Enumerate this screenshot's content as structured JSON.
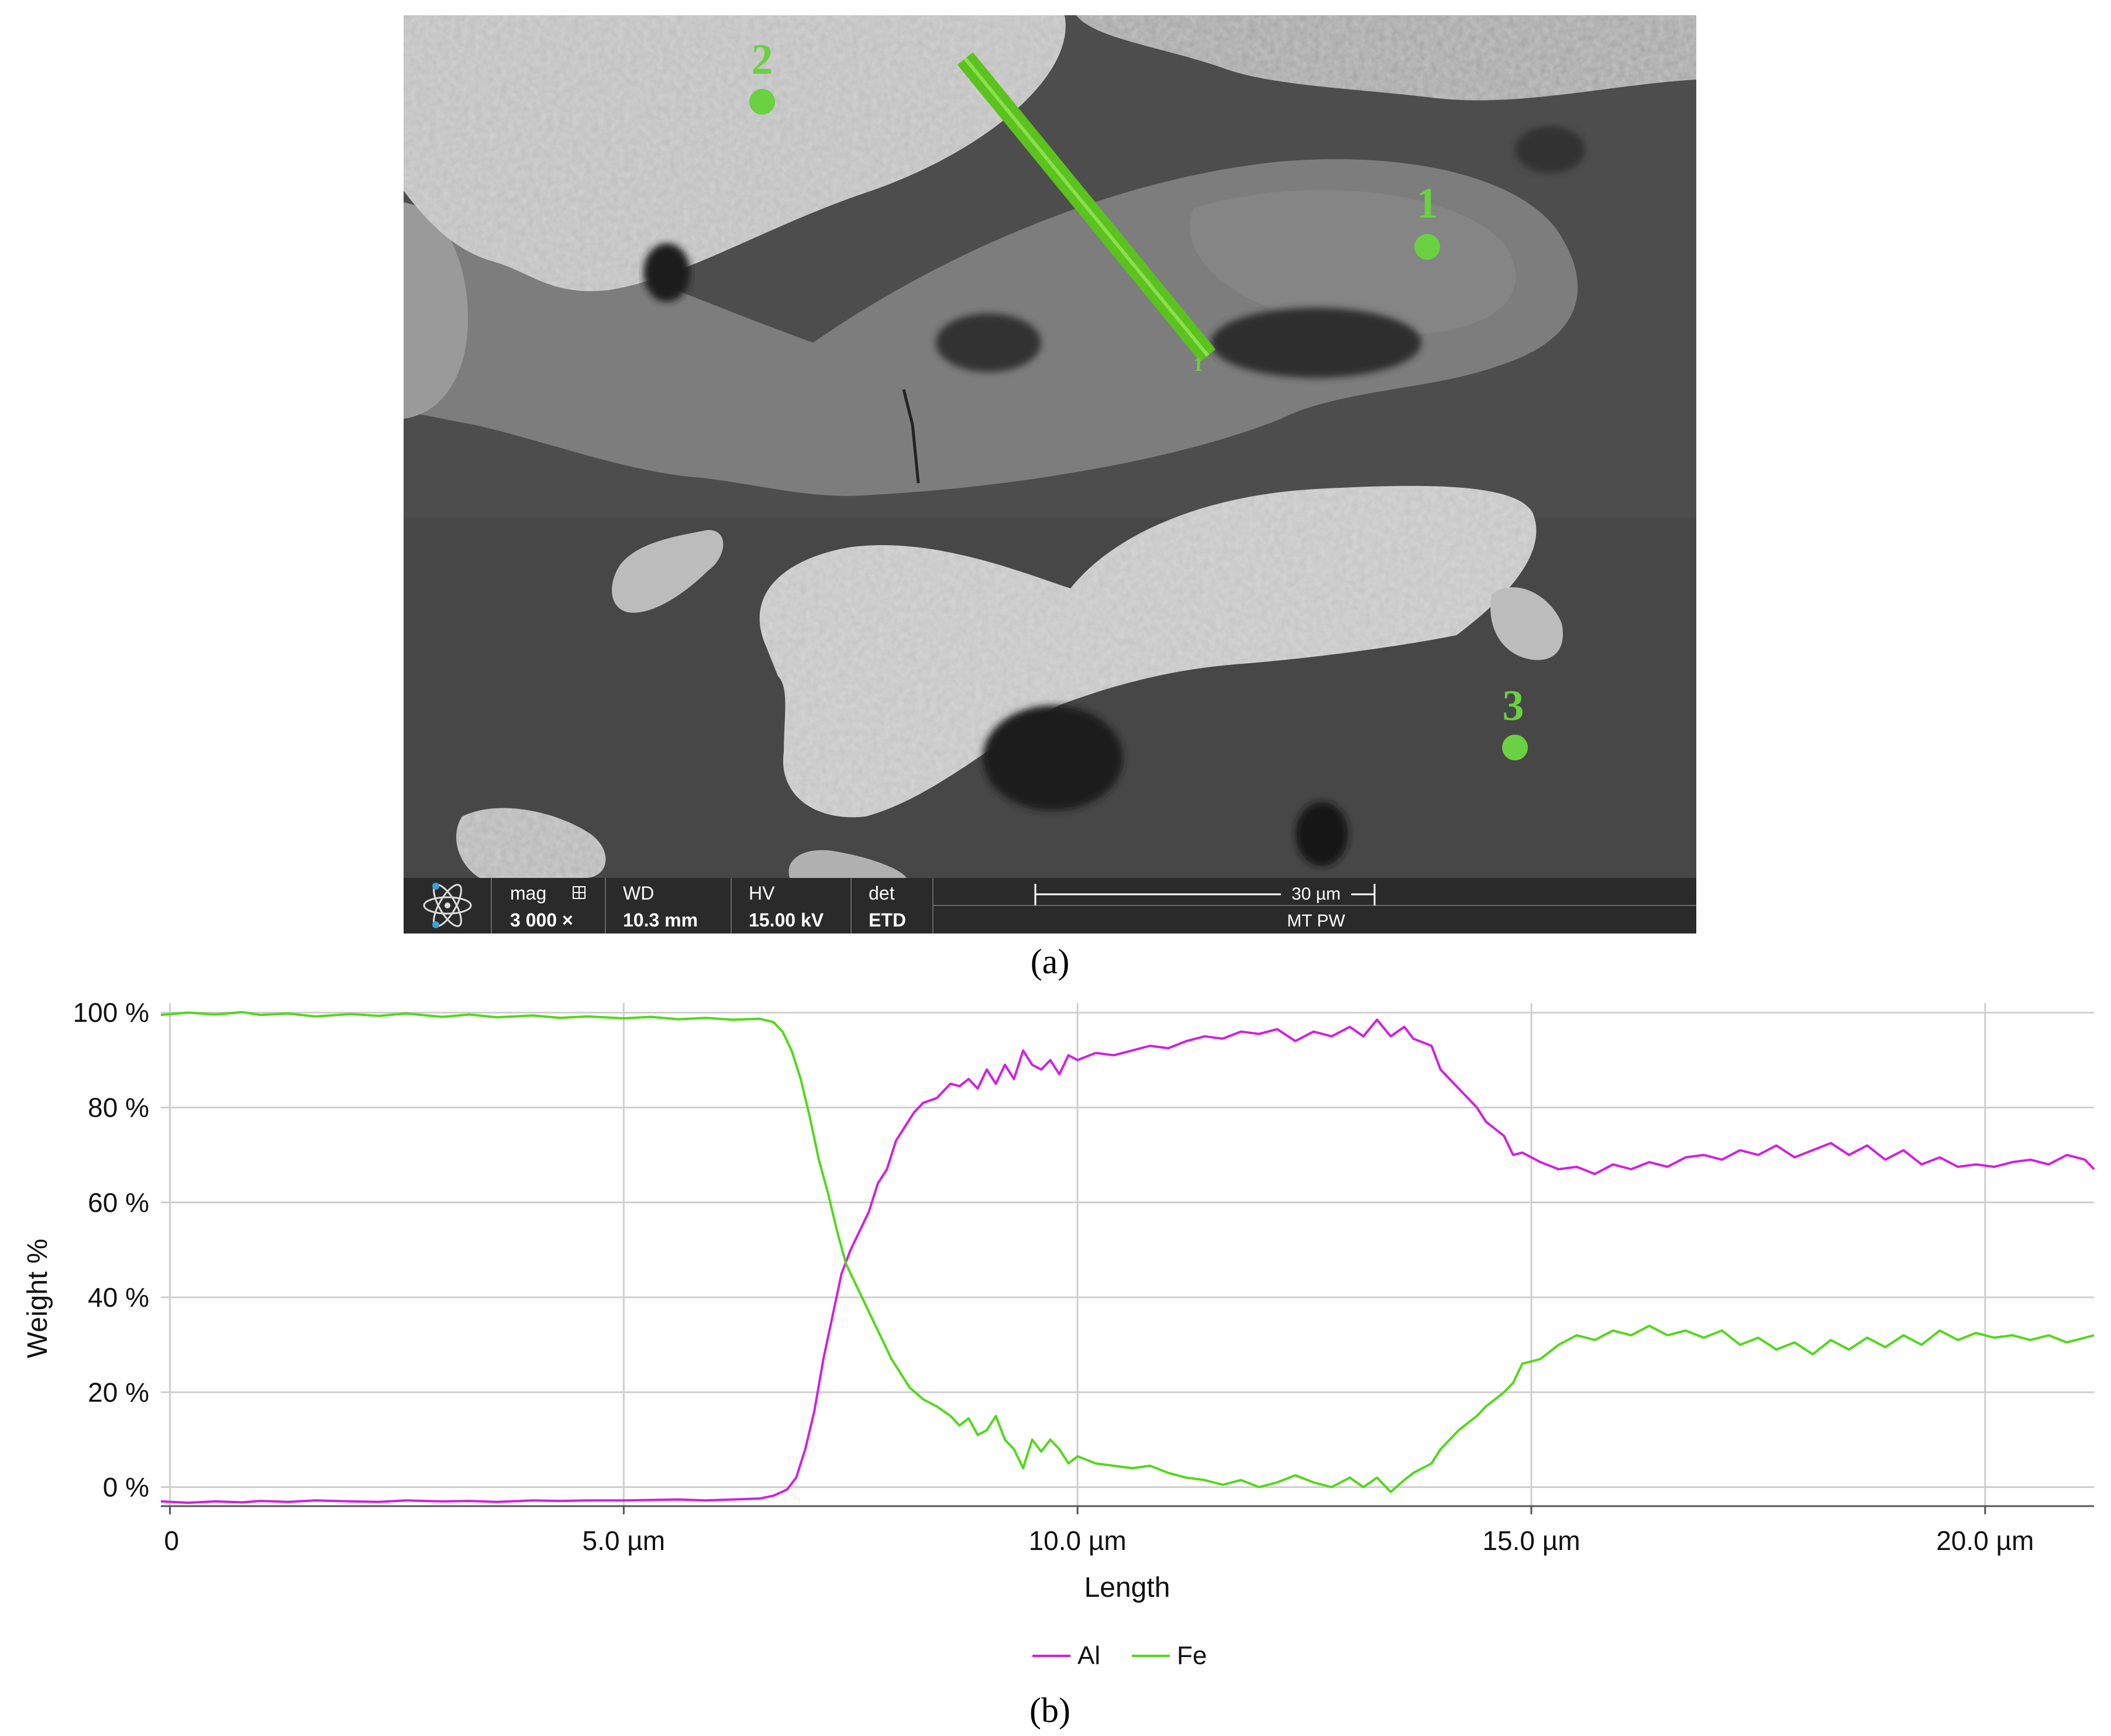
{
  "panels": {
    "a_label": "(a)",
    "b_label": "(b)"
  },
  "sem": {
    "points": [
      {
        "label": "1"
      },
      {
        "label": "2"
      },
      {
        "label": "3"
      }
    ],
    "line_marker": "1",
    "databar": {
      "mag_label": "mag",
      "mag_value": "3 000 ×",
      "wd_label": "WD",
      "wd_value": "10.3 mm",
      "hv_label": "HV",
      "hv_value": "15.00 kV",
      "det_label": "det",
      "det_value": "ETD",
      "scale_label": "30 µm",
      "info": "MT PW"
    },
    "colors": {
      "marker": "#6ad141",
      "linescan": "#5cc21e",
      "bar": "#2a2a2a"
    }
  },
  "chart_data": {
    "type": "line",
    "title": "",
    "xlabel": "Length",
    "ylabel": "Weight %",
    "xlim": [
      -0.1,
      21.2
    ],
    "ylim": [
      -4,
      102
    ],
    "x_ticks": [
      {
        "v": 0,
        "label": "0"
      },
      {
        "v": 5,
        "label": "5.0 µm"
      },
      {
        "v": 10,
        "label": "10.0 µm"
      },
      {
        "v": 15,
        "label": "15.0 µm"
      },
      {
        "v": 20,
        "label": "20.0 µm"
      }
    ],
    "y_ticks": [
      {
        "v": 0,
        "label": "0 %"
      },
      {
        "v": 20,
        "label": "20 %"
      },
      {
        "v": 40,
        "label": "40 %"
      },
      {
        "v": 60,
        "label": "60 %"
      },
      {
        "v": 80,
        "label": "80 %"
      },
      {
        "v": 100,
        "label": "100 %"
      }
    ],
    "grid": true,
    "legend_position": "bottom-center",
    "series": [
      {
        "name": "Al",
        "color": "#d21fe0",
        "points": [
          [
            -0.1,
            -3.0
          ],
          [
            0.2,
            -3.3
          ],
          [
            0.5,
            -3.0
          ],
          [
            0.8,
            -3.2
          ],
          [
            1.0,
            -2.9
          ],
          [
            1.3,
            -3.1
          ],
          [
            1.6,
            -2.8
          ],
          [
            2.0,
            -3.0
          ],
          [
            2.3,
            -3.1
          ],
          [
            2.6,
            -2.8
          ],
          [
            3.0,
            -3.0
          ],
          [
            3.3,
            -2.9
          ],
          [
            3.6,
            -3.1
          ],
          [
            4.0,
            -2.8
          ],
          [
            4.3,
            -2.9
          ],
          [
            4.6,
            -2.8
          ],
          [
            5.0,
            -2.8
          ],
          [
            5.3,
            -2.7
          ],
          [
            5.6,
            -2.6
          ],
          [
            5.9,
            -2.8
          ],
          [
            6.2,
            -2.6
          ],
          [
            6.5,
            -2.4
          ],
          [
            6.65,
            -1.8
          ],
          [
            6.8,
            -0.5
          ],
          [
            6.9,
            2.0
          ],
          [
            7.0,
            8.0
          ],
          [
            7.1,
            16.0
          ],
          [
            7.2,
            27.0
          ],
          [
            7.3,
            36.0
          ],
          [
            7.4,
            45.0
          ],
          [
            7.5,
            50.0
          ],
          [
            7.6,
            54.0
          ],
          [
            7.7,
            58.0
          ],
          [
            7.8,
            64.0
          ],
          [
            7.9,
            67.0
          ],
          [
            8.0,
            73.0
          ],
          [
            8.1,
            76.0
          ],
          [
            8.2,
            79.0
          ],
          [
            8.3,
            81.0
          ],
          [
            8.45,
            82.0
          ],
          [
            8.6,
            85.0
          ],
          [
            8.7,
            84.5
          ],
          [
            8.8,
            86.0
          ],
          [
            8.9,
            84.0
          ],
          [
            9.0,
            88.0
          ],
          [
            9.1,
            85.0
          ],
          [
            9.2,
            89.0
          ],
          [
            9.3,
            86.0
          ],
          [
            9.4,
            92.0
          ],
          [
            9.5,
            89.0
          ],
          [
            9.6,
            88.0
          ],
          [
            9.7,
            90.0
          ],
          [
            9.8,
            87.0
          ],
          [
            9.9,
            91.0
          ],
          [
            10.0,
            90.0
          ],
          [
            10.2,
            91.5
          ],
          [
            10.4,
            91.0
          ],
          [
            10.6,
            92.0
          ],
          [
            10.8,
            93.0
          ],
          [
            11.0,
            92.5
          ],
          [
            11.2,
            94.0
          ],
          [
            11.4,
            95.0
          ],
          [
            11.6,
            94.5
          ],
          [
            11.8,
            96.0
          ],
          [
            12.0,
            95.5
          ],
          [
            12.2,
            96.5
          ],
          [
            12.4,
            94.0
          ],
          [
            12.6,
            96.0
          ],
          [
            12.8,
            95.0
          ],
          [
            13.0,
            97.0
          ],
          [
            13.15,
            95.0
          ],
          [
            13.3,
            98.5
          ],
          [
            13.45,
            95.0
          ],
          [
            13.6,
            97.0
          ],
          [
            13.7,
            94.5
          ],
          [
            13.9,
            93.0
          ],
          [
            14.0,
            88.0
          ],
          [
            14.2,
            84.0
          ],
          [
            14.4,
            80.0
          ],
          [
            14.5,
            77.0
          ],
          [
            14.7,
            74.0
          ],
          [
            14.8,
            70.0
          ],
          [
            14.9,
            70.5
          ],
          [
            15.1,
            68.5
          ],
          [
            15.3,
            67.0
          ],
          [
            15.5,
            67.5
          ],
          [
            15.7,
            66.0
          ],
          [
            15.9,
            68.0
          ],
          [
            16.1,
            67.0
          ],
          [
            16.3,
            68.5
          ],
          [
            16.5,
            67.5
          ],
          [
            16.7,
            69.5
          ],
          [
            16.9,
            70.0
          ],
          [
            17.1,
            69.0
          ],
          [
            17.3,
            71.0
          ],
          [
            17.5,
            70.0
          ],
          [
            17.7,
            72.0
          ],
          [
            17.9,
            69.5
          ],
          [
            18.1,
            71.0
          ],
          [
            18.3,
            72.5
          ],
          [
            18.5,
            70.0
          ],
          [
            18.7,
            72.0
          ],
          [
            18.9,
            69.0
          ],
          [
            19.1,
            71.0
          ],
          [
            19.3,
            68.0
          ],
          [
            19.5,
            69.5
          ],
          [
            19.7,
            67.5
          ],
          [
            19.9,
            68.0
          ],
          [
            20.1,
            67.5
          ],
          [
            20.3,
            68.5
          ],
          [
            20.5,
            69.0
          ],
          [
            20.7,
            68.0
          ],
          [
            20.9,
            70.0
          ],
          [
            21.1,
            69.0
          ],
          [
            21.2,
            67.0
          ]
        ]
      },
      {
        "name": "Fe",
        "color": "#52d81a",
        "points": [
          [
            -0.1,
            99.5
          ],
          [
            0.2,
            100.0
          ],
          [
            0.5,
            99.6
          ],
          [
            0.8,
            100.1
          ],
          [
            1.0,
            99.5
          ],
          [
            1.3,
            99.8
          ],
          [
            1.6,
            99.2
          ],
          [
            2.0,
            99.7
          ],
          [
            2.3,
            99.3
          ],
          [
            2.6,
            99.8
          ],
          [
            3.0,
            99.1
          ],
          [
            3.3,
            99.6
          ],
          [
            3.6,
            99.0
          ],
          [
            4.0,
            99.4
          ],
          [
            4.3,
            98.9
          ],
          [
            4.6,
            99.2
          ],
          [
            5.0,
            98.8
          ],
          [
            5.3,
            99.1
          ],
          [
            5.6,
            98.6
          ],
          [
            5.9,
            98.9
          ],
          [
            6.2,
            98.5
          ],
          [
            6.5,
            98.7
          ],
          [
            6.65,
            98.0
          ],
          [
            6.75,
            96.0
          ],
          [
            6.85,
            92.0
          ],
          [
            6.95,
            86.0
          ],
          [
            7.05,
            78.0
          ],
          [
            7.15,
            69.0
          ],
          [
            7.25,
            62.0
          ],
          [
            7.35,
            54.0
          ],
          [
            7.45,
            47.0
          ],
          [
            7.55,
            43.0
          ],
          [
            7.65,
            39.0
          ],
          [
            7.75,
            35.0
          ],
          [
            7.85,
            31.0
          ],
          [
            7.95,
            27.0
          ],
          [
            8.05,
            24.0
          ],
          [
            8.15,
            21.0
          ],
          [
            8.3,
            18.5
          ],
          [
            8.45,
            17.0
          ],
          [
            8.6,
            15.0
          ],
          [
            8.7,
            13.0
          ],
          [
            8.8,
            14.5
          ],
          [
            8.9,
            11.0
          ],
          [
            9.0,
            12.0
          ],
          [
            9.1,
            15.0
          ],
          [
            9.2,
            10.0
          ],
          [
            9.3,
            8.0
          ],
          [
            9.4,
            4.0
          ],
          [
            9.5,
            10.0
          ],
          [
            9.6,
            7.5
          ],
          [
            9.7,
            10.0
          ],
          [
            9.8,
            8.0
          ],
          [
            9.9,
            5.0
          ],
          [
            10.0,
            6.5
          ],
          [
            10.2,
            5.0
          ],
          [
            10.4,
            4.5
          ],
          [
            10.6,
            4.0
          ],
          [
            10.8,
            4.5
          ],
          [
            11.0,
            3.0
          ],
          [
            11.2,
            2.0
          ],
          [
            11.4,
            1.5
          ],
          [
            11.6,
            0.5
          ],
          [
            11.8,
            1.5
          ],
          [
            12.0,
            0.0
          ],
          [
            12.2,
            1.0
          ],
          [
            12.4,
            2.5
          ],
          [
            12.6,
            1.0
          ],
          [
            12.8,
            0.0
          ],
          [
            13.0,
            2.0
          ],
          [
            13.15,
            0.0
          ],
          [
            13.3,
            2.0
          ],
          [
            13.45,
            -1.0
          ],
          [
            13.6,
            1.5
          ],
          [
            13.7,
            3.0
          ],
          [
            13.9,
            5.0
          ],
          [
            14.0,
            8.0
          ],
          [
            14.2,
            12.0
          ],
          [
            14.4,
            15.0
          ],
          [
            14.5,
            17.0
          ],
          [
            14.7,
            20.0
          ],
          [
            14.8,
            22.0
          ],
          [
            14.9,
            26.0
          ],
          [
            15.1,
            27.0
          ],
          [
            15.3,
            30.0
          ],
          [
            15.5,
            32.0
          ],
          [
            15.7,
            31.0
          ],
          [
            15.9,
            33.0
          ],
          [
            16.1,
            32.0
          ],
          [
            16.3,
            34.0
          ],
          [
            16.5,
            32.0
          ],
          [
            16.7,
            33.0
          ],
          [
            16.9,
            31.5
          ],
          [
            17.1,
            33.0
          ],
          [
            17.3,
            30.0
          ],
          [
            17.5,
            31.5
          ],
          [
            17.7,
            29.0
          ],
          [
            17.9,
            30.5
          ],
          [
            18.1,
            28.0
          ],
          [
            18.3,
            31.0
          ],
          [
            18.5,
            29.0
          ],
          [
            18.7,
            31.5
          ],
          [
            18.9,
            29.5
          ],
          [
            19.1,
            32.0
          ],
          [
            19.3,
            30.0
          ],
          [
            19.5,
            33.0
          ],
          [
            19.7,
            31.0
          ],
          [
            19.9,
            32.5
          ],
          [
            20.1,
            31.5
          ],
          [
            20.3,
            32.0
          ],
          [
            20.5,
            31.0
          ],
          [
            20.7,
            32.0
          ],
          [
            20.9,
            30.5
          ],
          [
            21.1,
            31.5
          ],
          [
            21.2,
            32.0
          ]
        ]
      }
    ]
  }
}
